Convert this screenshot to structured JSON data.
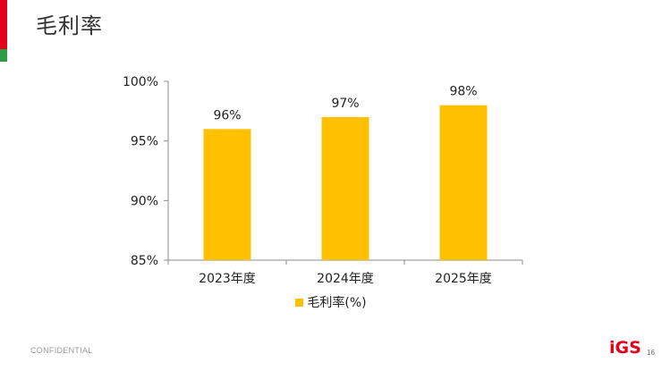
{
  "slide": {
    "title": "毛利率",
    "footer_left": "CONFIDENTIAL",
    "logo_text": "iGS",
    "page_number": "16"
  },
  "colors": {
    "bar": "#FFC000",
    "accent_red": "#E3001B",
    "accent_green": "#2E9B45"
  },
  "chart_data": {
    "type": "bar",
    "categories": [
      "2023年度",
      "2024年度",
      "2025年度"
    ],
    "series": [
      {
        "name": "毛利率(%)",
        "values": [
          96,
          97,
          98
        ],
        "color": "#FFC000"
      }
    ],
    "data_labels": [
      "96%",
      "97%",
      "98%"
    ],
    "y_ticks": [
      "85%",
      "90%",
      "95%",
      "100%"
    ],
    "y_tick_values": [
      85,
      90,
      95,
      100
    ],
    "ylim": [
      85,
      100
    ],
    "grid": false,
    "legend_position": "bottom"
  }
}
